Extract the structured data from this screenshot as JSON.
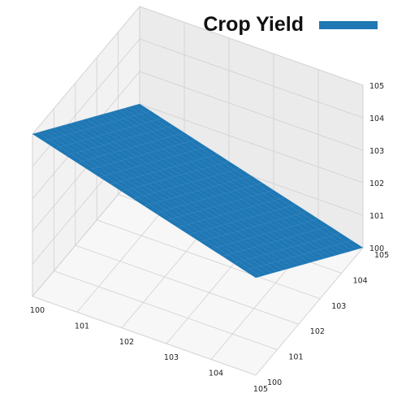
{
  "chart_data": {
    "type": "surface",
    "title": "",
    "legend": {
      "label": "Crop Yield",
      "position": "top-right",
      "color": "#1f77b4"
    },
    "x_axis": {
      "label": "",
      "range": [
        100,
        105
      ],
      "ticks": [
        100,
        101,
        102,
        103,
        104,
        105
      ],
      "tick_labels": [
        "100",
        "101",
        "102",
        "103",
        "104",
        "105"
      ]
    },
    "y_axis": {
      "label": "",
      "range": [
        100,
        105
      ],
      "ticks": [
        100,
        101,
        102,
        103,
        104,
        105
      ],
      "tick_labels": [
        "100",
        "101",
        "102",
        "103",
        "104",
        "105"
      ]
    },
    "z_axis": {
      "label": "",
      "range": [
        100,
        105
      ],
      "ticks": [
        100,
        101,
        102,
        103,
        104,
        105
      ],
      "tick_labels": [
        "100",
        "101",
        "102",
        "103",
        "104",
        "105"
      ]
    },
    "surface": {
      "x": [
        100,
        101,
        102,
        103,
        104,
        105
      ],
      "y": [
        100,
        101,
        102,
        103,
        104,
        105
      ],
      "z": [
        [
          105,
          104.6,
          104.2,
          103.8,
          103.4,
          103.0
        ],
        [
          104.4,
          104.0,
          103.6,
          103.2,
          102.8,
          102.4
        ],
        [
          103.8,
          103.4,
          103.0,
          102.6,
          102.2,
          101.8
        ],
        [
          103.2,
          102.8,
          102.4,
          102.0,
          101.6,
          101.2
        ],
        [
          102.6,
          102.2,
          101.8,
          101.4,
          101.0,
          100.6
        ],
        [
          102.0,
          101.6,
          101.2,
          100.8,
          100.4,
          100.0
        ]
      ]
    },
    "grid": true,
    "colors": {
      "surface": "#1f77b4",
      "pane_back": "#ebebeb",
      "pane_side": "#f2f2f2",
      "pane_floor": "#f7f7f7"
    }
  }
}
